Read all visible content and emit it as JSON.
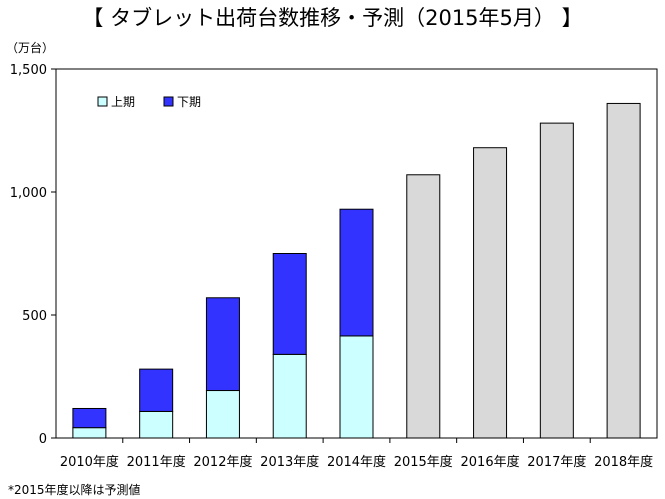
{
  "title": "【 タブレット出荷台数推移・予測（2015年5月） 】",
  "footnote": "*2015年度以降は予測値",
  "chart_data": {
    "type": "bar",
    "stacked": true,
    "unit_label": "（万台）",
    "categories": [
      "2010年度",
      "2011年度",
      "2012年度",
      "2013年度",
      "2014年度",
      "2015年度",
      "2016年度",
      "2017年度",
      "2018年度"
    ],
    "series": [
      {
        "name": "上期",
        "color": "#ccffff",
        "values": [
          42,
          108,
          193,
          340,
          415,
          null,
          null,
          null,
          null
        ]
      },
      {
        "name": "下期",
        "color": "#3333ff",
        "values": [
          78,
          172,
          377,
          410,
          515,
          null,
          null,
          null,
          null
        ]
      },
      {
        "name": "",
        "color": "#d9d9d9",
        "values": [
          null,
          null,
          null,
          null,
          null,
          1070,
          1180,
          1280,
          1360
        ]
      }
    ],
    "ylim": [
      0,
      1500
    ],
    "yticks": [
      0,
      500,
      1000,
      1500
    ],
    "ytick_labels": [
      "0",
      "500",
      "1,000",
      "1,500"
    ],
    "grid": false,
    "legend_position": "top-left"
  }
}
